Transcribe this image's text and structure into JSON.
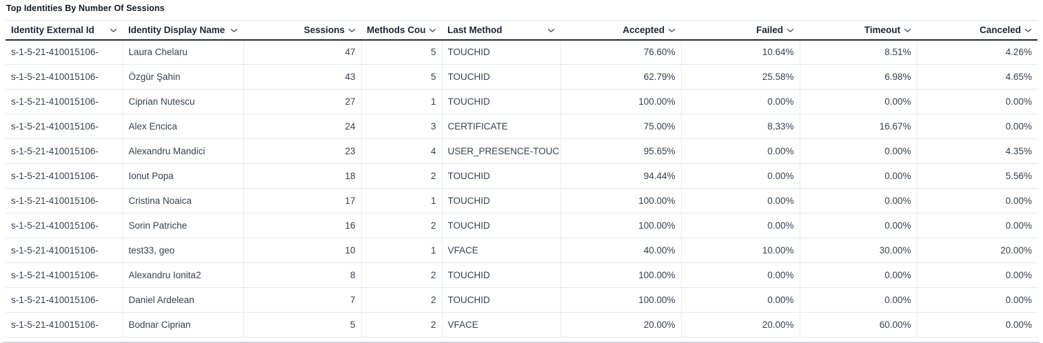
{
  "title": "Top Identities By Number Of Sessions",
  "icons": {
    "sort_icon": "chevron-down"
  },
  "colors": {
    "header_text": "#1f2430",
    "body_text": "#3a404b",
    "header_rule": "#23272f",
    "row_divider": "#e6e9ed",
    "scrollbar_thumb": "#d3d7dd"
  },
  "table": {
    "columns": [
      {
        "key": "identity-external-id",
        "label": "Identity External Id",
        "align": "left"
      },
      {
        "key": "identity-display-name",
        "label": "Identity Display Name",
        "align": "left"
      },
      {
        "key": "sessions",
        "label": "Sessions",
        "align": "right"
      },
      {
        "key": "methods-count",
        "label": "Methods Count",
        "align": "right"
      },
      {
        "key": "last-method",
        "label": "Last Method",
        "align": "left"
      },
      {
        "key": "accepted",
        "label": "Accepted",
        "align": "right"
      },
      {
        "key": "failed",
        "label": "Failed",
        "align": "right"
      },
      {
        "key": "timeout",
        "label": "Timeout",
        "align": "right"
      },
      {
        "key": "canceled",
        "label": "Canceled",
        "align": "right"
      }
    ],
    "rows": [
      [
        "s-1-5-21-410015106-",
        "Laura Chelaru",
        "47",
        "5",
        "TOUCHID",
        "76.60%",
        "10.64%",
        "8.51%",
        "4.26%"
      ],
      [
        "s-1-5-21-410015106-",
        "Özgür Şahin",
        "43",
        "5",
        "TOUCHID",
        "62.79%",
        "25.58%",
        "6.98%",
        "4.65%"
      ],
      [
        "s-1-5-21-410015106-",
        "Ciprian Nutescu",
        "27",
        "1",
        "TOUCHID",
        "100.00%",
        "0.00%",
        "0.00%",
        "0.00%"
      ],
      [
        "s-1-5-21-410015106-",
        "Alex Encica",
        "24",
        "3",
        "CERTIFICATE",
        "75.00%",
        "8.33%",
        "16.67%",
        "0.00%"
      ],
      [
        "s-1-5-21-410015106-",
        "Alexandru Mandici",
        "23",
        "4",
        "USER_PRESENCE-TOUC",
        "95.65%",
        "0.00%",
        "0.00%",
        "4.35%"
      ],
      [
        "s-1-5-21-410015106-",
        "Ionut Popa",
        "18",
        "2",
        "TOUCHID",
        "94.44%",
        "0.00%",
        "0.00%",
        "5.56%"
      ],
      [
        "s-1-5-21-410015106-",
        "Cristina Noaica",
        "17",
        "1",
        "TOUCHID",
        "100.00%",
        "0.00%",
        "0.00%",
        "0.00%"
      ],
      [
        "s-1-5-21-410015106-",
        "Sorin Patriche",
        "16",
        "2",
        "TOUCHID",
        "100.00%",
        "0.00%",
        "0.00%",
        "0.00%"
      ],
      [
        "s-1-5-21-410015106-",
        "test33, geo",
        "10",
        "1",
        "VFACE",
        "40.00%",
        "10.00%",
        "30.00%",
        "20.00%"
      ],
      [
        "s-1-5-21-410015106-",
        "Alexandru Ionita2",
        "8",
        "2",
        "TOUCHID",
        "100.00%",
        "0.00%",
        "0.00%",
        "0.00%"
      ],
      [
        "s-1-5-21-410015106-",
        "Daniel Ardelean",
        "7",
        "2",
        "TOUCHID",
        "100.00%",
        "0.00%",
        "0.00%",
        "0.00%"
      ],
      [
        "s-1-5-21-410015106-",
        "Bodnar Ciprian",
        "5",
        "2",
        "VFACE",
        "20.00%",
        "20.00%",
        "60.00%",
        "0.00%"
      ]
    ]
  }
}
